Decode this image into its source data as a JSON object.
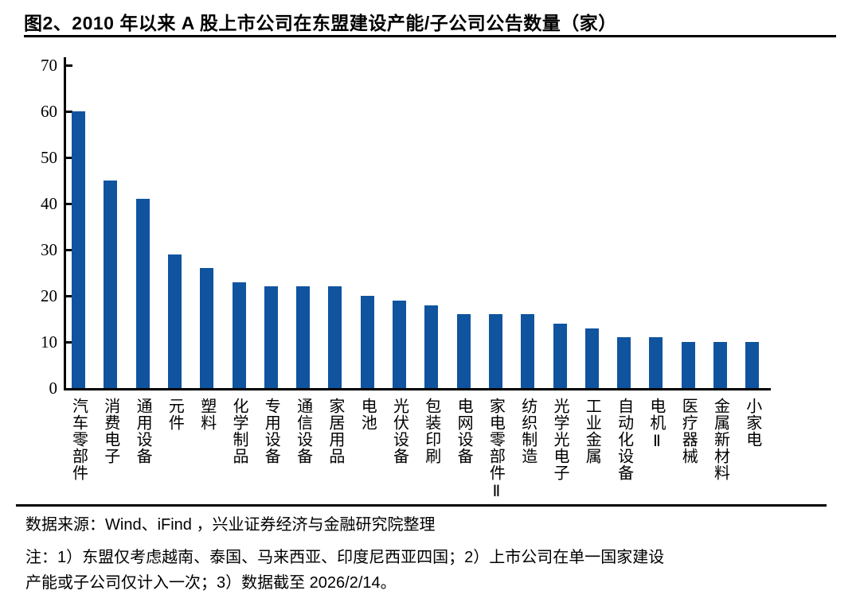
{
  "header": {
    "title": "图2、2010 年以来 A 股上市公司在东盟建设产能/子公司公告数量（家）"
  },
  "chart_data": {
    "type": "bar",
    "title": "2010 年以来 A 股上市公司在东盟建设产能/子公司公告数量（家）",
    "categories": [
      "汽车零部件",
      "消费电子",
      "通用设备",
      "元件",
      "塑料",
      "化学制品",
      "专用设备",
      "通信设备",
      "家居用品",
      "电池",
      "光伏设备",
      "包装印刷",
      "电网设备",
      "家电零部件Ⅱ",
      "纺织制造",
      "光学光电子",
      "工业金属",
      "自动化设备",
      "电机Ⅱ",
      "医疗器械",
      "金属新材料",
      "小家电"
    ],
    "values": [
      60,
      45,
      41,
      29,
      26,
      23,
      22,
      22,
      22,
      20,
      19,
      18,
      16,
      16,
      16,
      14,
      13,
      11,
      11,
      10,
      10,
      10
    ],
    "xlabel": "",
    "ylabel": "",
    "ylim": [
      0,
      70
    ],
    "yticks": [
      0,
      10,
      20,
      30,
      40,
      50,
      60,
      70
    ],
    "grid": false,
    "legend": false,
    "bar_color": "#10549F",
    "axis_color": "#000000",
    "unit": "家"
  },
  "footer": {
    "source": "数据来源：Wind、iFind ，兴业证券经济与金融研究院整理",
    "note_lines": [
      "注：1）东盟仅考虑越南、泰国、马来西亚、印度尼西亚四国；2）上市公司在单一国家建设",
      "产能或子公司仅计入一次；3）数据截至 2026/2/14。"
    ]
  }
}
